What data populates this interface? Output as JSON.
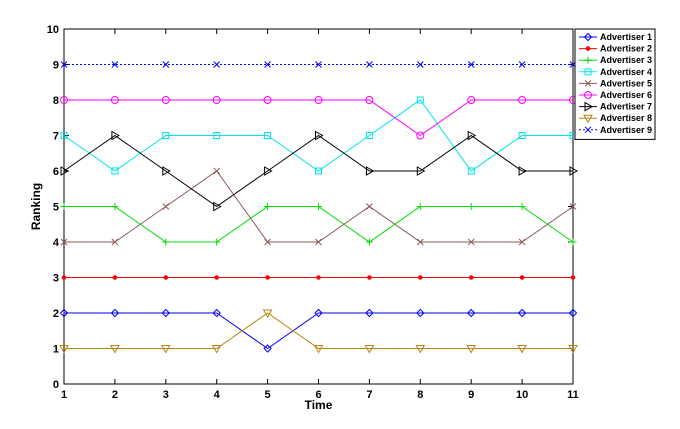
{
  "chart_data": {
    "type": "line",
    "title": "",
    "xlabel": "Time",
    "ylabel": "Ranking",
    "xlim": [
      1,
      11
    ],
    "ylim": [
      0,
      10
    ],
    "xticks": [
      "1",
      "2",
      "3",
      "4",
      "5",
      "6",
      "7",
      "8",
      "9",
      "10",
      "11"
    ],
    "yticks": [
      "0",
      "1",
      "2",
      "3",
      "4",
      "5",
      "6",
      "7",
      "8",
      "9",
      "10"
    ],
    "grid": false,
    "legend_position": "top-right",
    "x": [
      1,
      2,
      3,
      4,
      5,
      6,
      7,
      8,
      9,
      10,
      11
    ],
    "series": [
      {
        "name": "Advertiser 1",
        "color": "#0000ff",
        "marker": "diamond",
        "dash": "solid",
        "values": [
          2,
          2,
          2,
          2,
          1,
          2,
          2,
          2,
          2,
          2,
          2
        ]
      },
      {
        "name": "Advertiser 2",
        "color": "#ff0000",
        "marker": "dot",
        "dash": "solid",
        "values": [
          3,
          3,
          3,
          3,
          3,
          3,
          3,
          3,
          3,
          3,
          3
        ]
      },
      {
        "name": "Advertiser 3",
        "color": "#00dd00",
        "marker": "plus",
        "dash": "solid",
        "values": [
          5,
          5,
          4,
          4,
          5,
          5,
          4,
          5,
          5,
          5,
          4
        ]
      },
      {
        "name": "Advertiser 4",
        "color": "#00e5e5",
        "marker": "square",
        "dash": "solid",
        "values": [
          7,
          6,
          7,
          7,
          7,
          6,
          7,
          8,
          6,
          7,
          7
        ]
      },
      {
        "name": "Advertiser 5",
        "color": "#8b5a5a",
        "marker": "x",
        "dash": "solid",
        "values": [
          4,
          4,
          5,
          6,
          4,
          4,
          5,
          4,
          4,
          4,
          5
        ]
      },
      {
        "name": "Advertiser 6",
        "color": "#ff00ff",
        "marker": "circle",
        "dash": "solid",
        "values": [
          8,
          8,
          8,
          8,
          8,
          8,
          8,
          7,
          8,
          8,
          8
        ]
      },
      {
        "name": "Advertiser 7",
        "color": "#000000",
        "marker": "triangle-right",
        "dash": "solid",
        "values": [
          6,
          7,
          6,
          5,
          6,
          7,
          6,
          6,
          7,
          6,
          6
        ]
      },
      {
        "name": "Advertiser 8",
        "color": "#b8860b",
        "marker": "triangle-down",
        "dash": "solid",
        "values": [
          1,
          1,
          1,
          1,
          2,
          1,
          1,
          1,
          1,
          1,
          1
        ]
      },
      {
        "name": "Advertiser 9",
        "color": "#0000ff",
        "marker": "x",
        "dash": "dotted",
        "values": [
          9,
          9,
          9,
          9,
          9,
          9,
          9,
          9,
          9,
          9,
          9
        ]
      }
    ]
  }
}
